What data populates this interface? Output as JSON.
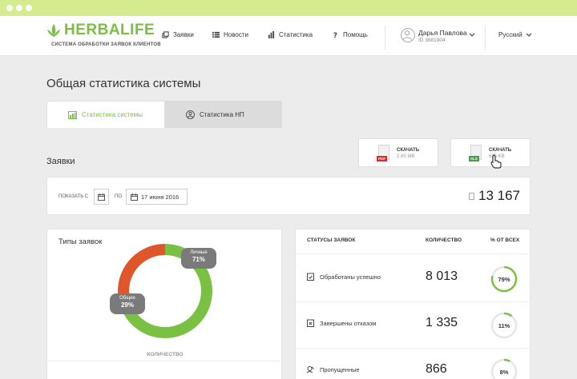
{
  "header": {
    "brand": "HERBALIFE",
    "tagline": "СИСТЕМА ОБРАБОТКИ ЗАЯВОК КЛИЕНТОВ",
    "nav": [
      {
        "label": "Заявки",
        "icon": "copy-icon"
      },
      {
        "label": "Новости",
        "icon": "list-icon"
      },
      {
        "label": "Статистика",
        "icon": "bar-chart-icon"
      },
      {
        "label": "Помощь",
        "icon": "question-icon"
      }
    ],
    "user_name": "Дарья Павлова",
    "user_id": "ID 3681904",
    "language": "Русский"
  },
  "page_title": "Общая статистика системы",
  "tabs": [
    {
      "label": "Статистика системы",
      "active": true,
      "icon": "chart-icon"
    },
    {
      "label": "Статистика НП",
      "active": false,
      "icon": "person-icon"
    }
  ],
  "section_title": "Заявки",
  "downloads": [
    {
      "label": "СКАЧАТЬ",
      "size": "2.65 MB",
      "type": "PDF",
      "color": "#d32f2f"
    },
    {
      "label": "СКАЧАТЬ",
      "size": "635 KB",
      "type": "XLS",
      "color": "#43a047"
    }
  ],
  "filter": {
    "from_label": "ПОКАЗАТЬ С",
    "to_label": "ПО",
    "to_date": "17 июня 2016",
    "total": "13 167"
  },
  "types": {
    "title": "Типы заявок",
    "quantity_label": "КОЛИЧЕСТВО",
    "segments": [
      {
        "name": "Личные",
        "percent": "71%",
        "value": 71,
        "color": "#7ac143"
      },
      {
        "name": "Общие",
        "percent": "29%",
        "value": 29,
        "color": "#e0562b"
      }
    ]
  },
  "status": {
    "col_status": "СТАТУСЫ ЗАЯВОК",
    "col_count": "КОЛИЧЕСТВО",
    "col_percent": "% ОТ ВСЕХ",
    "rows": [
      {
        "name": "Обработаны успешно",
        "count": "8 013",
        "percent": "79%",
        "fraction": 0.79,
        "icon": "clipboard-check-icon"
      },
      {
        "name": "Завершены отказом",
        "count": "1 335",
        "percent": "11%",
        "fraction": 0.11,
        "icon": "clipboard-x-icon"
      },
      {
        "name": "Пропущенные",
        "count": "866",
        "percent": "8%",
        "fraction": 0.08,
        "icon": "missed-icon"
      }
    ]
  },
  "colors": {
    "accent": "#7ac143",
    "brand_green": "#7ac143"
  }
}
